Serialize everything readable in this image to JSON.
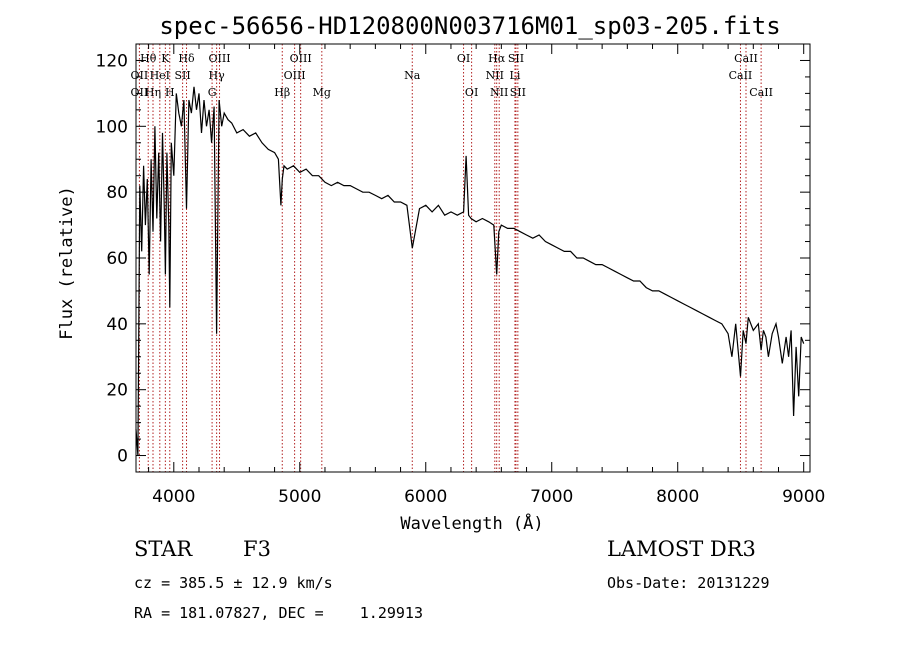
{
  "chart_data": {
    "type": "line",
    "title": "spec-56656-HD120800N003716M01_sp03-205.fits",
    "xlabel": "Wavelength (Å)",
    "ylabel": "Flux (relative)",
    "xlim": [
      3700,
      9050
    ],
    "ylim": [
      -5,
      125
    ],
    "xticks": [
      4000,
      5000,
      6000,
      7000,
      8000,
      9000
    ],
    "yticks": [
      0,
      20,
      40,
      60,
      80,
      100,
      120
    ],
    "spectrum": {
      "x": [
        3700,
        3715,
        3730,
        3745,
        3760,
        3775,
        3790,
        3805,
        3820,
        3835,
        3850,
        3865,
        3880,
        3895,
        3910,
        3925,
        3933,
        3945,
        3960,
        3968,
        3980,
        4000,
        4020,
        4040,
        4060,
        4080,
        4101,
        4120,
        4140,
        4160,
        4180,
        4200,
        4220,
        4240,
        4260,
        4280,
        4300,
        4320,
        4340,
        4360,
        4380,
        4400,
        4430,
        4460,
        4500,
        4550,
        4600,
        4650,
        4700,
        4750,
        4800,
        4830,
        4850,
        4861,
        4875,
        4900,
        4950,
        5000,
        5050,
        5100,
        5150,
        5200,
        5250,
        5300,
        5350,
        5400,
        5450,
        5500,
        5550,
        5600,
        5650,
        5700,
        5750,
        5800,
        5850,
        5893,
        5950,
        6000,
        6050,
        6100,
        6150,
        6200,
        6250,
        6300,
        6320,
        6340,
        6360,
        6400,
        6450,
        6500,
        6540,
        6563,
        6580,
        6600,
        6650,
        6700,
        6750,
        6800,
        6850,
        6900,
        6950,
        7000,
        7050,
        7100,
        7150,
        7200,
        7250,
        7300,
        7350,
        7400,
        7450,
        7500,
        7550,
        7600,
        7650,
        7700,
        7750,
        7800,
        7850,
        7900,
        7950,
        8000,
        8050,
        8100,
        8150,
        8200,
        8250,
        8300,
        8350,
        8400,
        8430,
        8460,
        8498,
        8520,
        8542,
        8560,
        8600,
        8640,
        8662,
        8680,
        8700,
        8720,
        8750,
        8780,
        8800,
        8830,
        8860,
        8880,
        8900,
        8920,
        8940,
        8960,
        8980,
        9000
      ],
      "y": [
        8,
        0,
        82,
        62,
        88,
        70,
        84,
        55,
        90,
        68,
        100,
        72,
        92,
        65,
        98,
        75,
        55,
        92,
        70,
        45,
        95,
        85,
        110,
        104,
        100,
        108,
        75,
        108,
        104,
        112,
        105,
        110,
        98,
        108,
        100,
        105,
        95,
        106,
        37,
        108,
        100,
        104,
        102,
        101,
        98,
        99,
        97,
        98,
        95,
        93,
        92,
        90,
        76,
        84,
        88,
        87,
        88,
        86,
        87,
        85,
        85,
        83,
        82,
        83,
        82,
        82,
        81,
        80,
        80,
        79,
        78,
        79,
        77,
        77,
        76,
        63,
        75,
        76,
        74,
        76,
        73,
        74,
        73,
        74,
        91,
        73,
        72,
        71,
        72,
        71,
        70,
        55,
        68,
        70,
        69,
        69,
        68,
        67,
        66,
        67,
        65,
        64,
        63,
        62,
        62,
        60,
        60,
        59,
        58,
        58,
        57,
        56,
        55,
        54,
        53,
        53,
        51,
        50,
        50,
        49,
        48,
        47,
        46,
        45,
        44,
        43,
        42,
        41,
        40,
        37,
        30,
        40,
        24,
        38,
        34,
        42,
        38,
        40,
        32,
        38,
        36,
        30,
        37,
        40,
        36,
        28,
        36,
        30,
        38,
        12,
        33,
        18,
        36,
        34
      ]
    },
    "lines": [
      {
        "label": "Hθ",
        "x": 3797,
        "row": 1
      },
      {
        "label": "OII",
        "x": 3727,
        "row": 2
      },
      {
        "label": "OII",
        "x": 3727,
        "row": 3
      },
      {
        "label": "K",
        "x": 3933,
        "row": 1
      },
      {
        "label": "HeI",
        "x": 3889,
        "row": 2
      },
      {
        "label": "Hη",
        "x": 3835,
        "row": 3
      },
      {
        "label": "Hδ",
        "x": 4101,
        "row": 1
      },
      {
        "label": "SII",
        "x": 4070,
        "row": 2
      },
      {
        "label": "H",
        "x": 3968,
        "row": 3
      },
      {
        "label": "OIII",
        "x": 4363,
        "row": 1
      },
      {
        "label": "Hγ",
        "x": 4340,
        "row": 2
      },
      {
        "label": "G",
        "x": 4304,
        "row": 3
      },
      {
        "label": "OIII",
        "x": 5007,
        "row": 1
      },
      {
        "label": "OIII",
        "x": 4959,
        "row": 2
      },
      {
        "label": "Hβ",
        "x": 4861,
        "row": 3
      },
      {
        "label": "Mg",
        "x": 5175,
        "row": 3
      },
      {
        "label": "Na",
        "x": 5893,
        "row": 2
      },
      {
        "label": "OI",
        "x": 6300,
        "row": 1
      },
      {
        "label": "OI",
        "x": 6364,
        "row": 3
      },
      {
        "label": "Hα",
        "x": 6563,
        "row": 1
      },
      {
        "label": "NII",
        "x": 6548,
        "row": 2
      },
      {
        "label": "NII",
        "x": 6583,
        "row": 3
      },
      {
        "label": "SII",
        "x": 6716,
        "row": 1
      },
      {
        "label": "Li",
        "x": 6708,
        "row": 2
      },
      {
        "label": "SII",
        "x": 6731,
        "row": 3
      },
      {
        "label": "CaII",
        "x": 8542,
        "row": 1
      },
      {
        "label": "CaII",
        "x": 8498,
        "row": 2
      },
      {
        "label": "CaII",
        "x": 8662,
        "row": 3
      }
    ],
    "line_color": "#000000",
    "marker_color": "#b22222"
  },
  "info": {
    "class_label": "STAR",
    "subclass": "F3",
    "survey": "LAMOST DR3",
    "cz_text": "cz = 385.5 ± 12.9 km/s",
    "obs_date_text": "Obs-Date: 20131229",
    "radec_text": "RA = 181.07827, DEC =    1.29913"
  }
}
